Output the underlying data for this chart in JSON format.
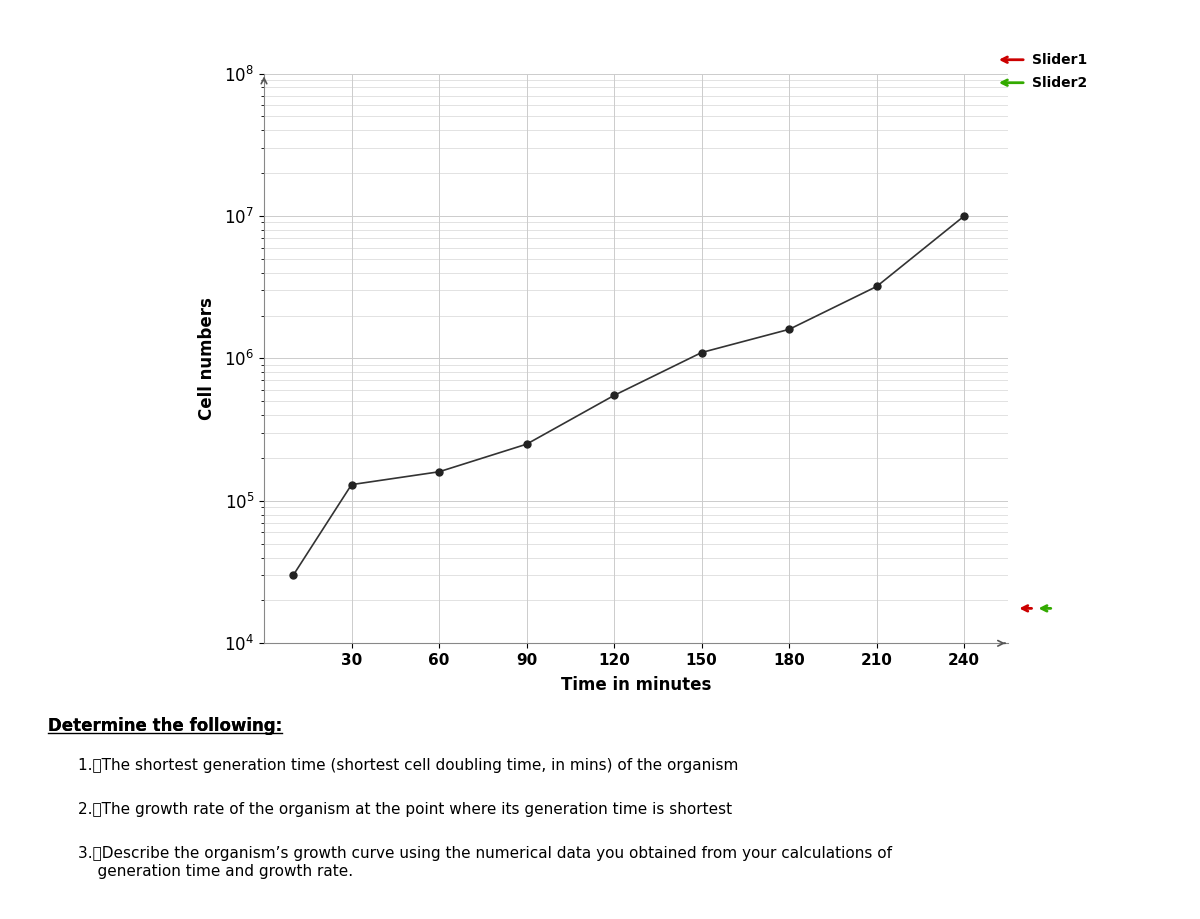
{
  "x": [
    10,
    30,
    60,
    90,
    120,
    150,
    180,
    210,
    240
  ],
  "y": [
    30000.0,
    130000.0,
    160000.0,
    250000.0,
    550000.0,
    1100000.0,
    1600000.0,
    3200000.0,
    10000000.0
  ],
  "xlim": [
    0,
    255
  ],
  "ylim_log": [
    4,
    8
  ],
  "xticks": [
    30,
    60,
    90,
    120,
    150,
    180,
    210,
    240
  ],
  "xlabel": "Time in minutes",
  "ylabel": "Cell numbers",
  "line_color": "#333333",
  "marker_color": "#222222",
  "grid_color": "#cccccc",
  "slider1_color": "#cc0000",
  "slider2_color": "#33aa00",
  "legend_labels": [
    "Slider1",
    "Slider2"
  ],
  "text_block": [
    "Determine the following:",
    "1.\tThe shortest generation time (shortest cell doubling time, in mins) of the organism",
    "2.\tThe growth rate of the organism at the point where its generation time is shortest",
    "3.\tDescribe the organism’s growth curve using the numerical data you obtained from your calculations of",
    "\tgeneration time and growth rate."
  ]
}
